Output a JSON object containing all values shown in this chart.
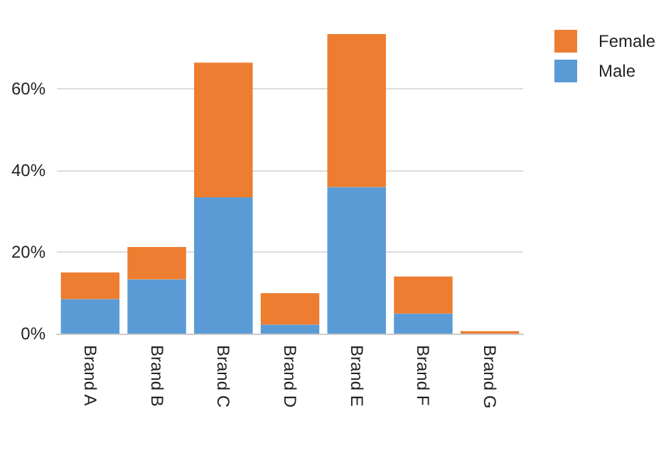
{
  "chart_data": {
    "type": "bar",
    "stacked": true,
    "categories": [
      "Brand A",
      "Brand B",
      "Brand C",
      "Brand D",
      "Brand E",
      "Brand F",
      "Brand G"
    ],
    "series": [
      {
        "name": "Male",
        "color": "#5b9bd5",
        "values": [
          8.5,
          13.3,
          33.4,
          2.2,
          35.9,
          4.9,
          0
        ]
      },
      {
        "name": "Female",
        "color": "#ed7d31",
        "values": [
          6.5,
          7.9,
          33.0,
          7.7,
          37.5,
          9.1,
          0.6
        ]
      }
    ],
    "ylim": [
      0,
      73.4
    ],
    "yticks": [
      {
        "value": 0,
        "label": "0%"
      },
      {
        "value": 20,
        "label": "20%"
      },
      {
        "value": 40,
        "label": "40%"
      },
      {
        "value": 60,
        "label": "60%"
      }
    ],
    "grid": "y",
    "legend": "top right"
  }
}
